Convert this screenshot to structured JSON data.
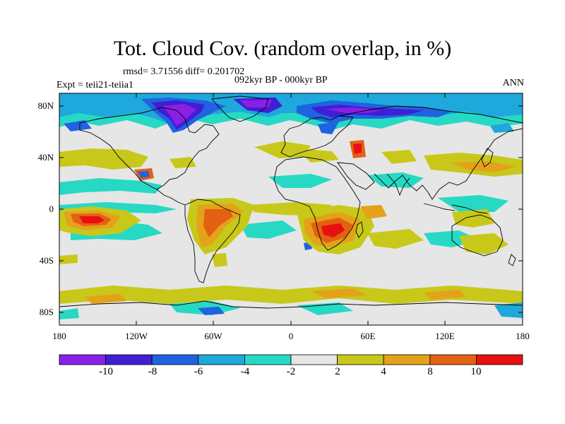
{
  "title": "Tot. Cloud Cov. (random overlap, in %)",
  "stats": "rmsd= 3.71556 diff= 0.201702",
  "experiment": "Expt = teii21-teiia1",
  "period": "092kyr BP - 000kyr BP",
  "season": "ANN",
  "lat_ticks": [
    "80N",
    "40N",
    "0",
    "40S",
    "80S"
  ],
  "lon_ticks": [
    "180",
    "120W",
    "60W",
    "0",
    "60E",
    "120E",
    "180"
  ],
  "colorbar": {
    "labels": [
      "-10",
      "-8",
      "-6",
      "-4",
      "-2",
      "2",
      "4",
      "8",
      "10"
    ],
    "colors": [
      "#8a1fe6",
      "#3f1ed4",
      "#1f63e0",
      "#1fa8dc",
      "#27d9c4",
      "#e6e6e6",
      "#c8c81a",
      "#e3a21a",
      "#e36014",
      "#e81010"
    ]
  },
  "colors": {
    "background_zero": "#e6e6e6",
    "coastline": "#000000"
  }
}
